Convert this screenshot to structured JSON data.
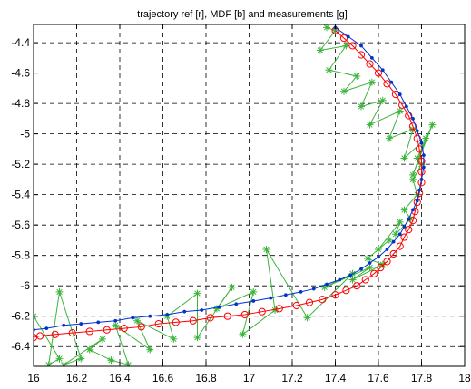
{
  "chart_data": {
    "type": "line",
    "title": "trajectory ref [r], MDF [b] and measurements [g]",
    "xlabel": "",
    "ylabel": "",
    "xlim": [
      16,
      18
    ],
    "ylim": [
      -6.53,
      -4.28
    ],
    "xticks": [
      "16",
      "16.2",
      "16.4",
      "16.6",
      "16.8",
      "17",
      "17.2",
      "17.4",
      "17.6",
      "17.8",
      "18"
    ],
    "yticks": [
      "-4.4",
      "-4.6",
      "-4.8",
      "-5",
      "-5.2",
      "-5.4",
      "-5.6",
      "-5.8",
      "-6",
      "-6.2",
      "-6.4"
    ],
    "grid": true,
    "series": [
      {
        "color": "#ff0000",
        "marker": "circle",
        "x": [
          17.4,
          17.44,
          17.48,
          17.52,
          17.56,
          17.6,
          17.64,
          17.68,
          17.71,
          17.74,
          17.76,
          17.78,
          17.79,
          17.8,
          17.8,
          17.8,
          17.79,
          17.78,
          17.77,
          17.76,
          17.74,
          17.72,
          17.7,
          17.67,
          17.64,
          17.61,
          17.58,
          17.54,
          17.5,
          17.45,
          17.4,
          17.34,
          17.28,
          17.22,
          17.14,
          17.06,
          16.98,
          16.9,
          16.82,
          16.74,
          16.66,
          16.58,
          16.5,
          16.42,
          16.34,
          16.26,
          16.18,
          16.1,
          16.03,
          16.0
        ],
        "y": [
          -4.32,
          -4.37,
          -4.42,
          -4.48,
          -4.54,
          -4.6,
          -4.67,
          -4.74,
          -4.81,
          -4.88,
          -4.95,
          -5.03,
          -5.1,
          -5.18,
          -5.25,
          -5.32,
          -5.39,
          -5.45,
          -5.51,
          -5.57,
          -5.63,
          -5.68,
          -5.74,
          -5.79,
          -5.84,
          -5.88,
          -5.92,
          -5.96,
          -6.0,
          -6.03,
          -6.06,
          -6.09,
          -6.11,
          -6.13,
          -6.15,
          -6.17,
          -6.19,
          -6.2,
          -6.21,
          -6.23,
          -6.24,
          -6.25,
          -6.27,
          -6.28,
          -6.29,
          -6.3,
          -6.31,
          -6.32,
          -6.33,
          -6.34
        ]
      },
      {
        "color": "#0033cc",
        "marker": "dot",
        "x": [
          17.4,
          17.46,
          17.52,
          17.57,
          17.62,
          17.66,
          17.7,
          17.73,
          17.76,
          17.78,
          17.8,
          17.81,
          17.81,
          17.8,
          17.79,
          17.78,
          17.76,
          17.74,
          17.72,
          17.7,
          17.67,
          17.64,
          17.6,
          17.56,
          17.52,
          17.47,
          17.42,
          17.36,
          17.3,
          17.24,
          17.17,
          17.1,
          17.02,
          16.94,
          16.86,
          16.78,
          16.7,
          16.62,
          16.54,
          16.46,
          16.38,
          16.3,
          16.22,
          16.14,
          16.06,
          16.0
        ],
        "y": [
          -4.3,
          -4.36,
          -4.42,
          -4.5,
          -4.58,
          -4.66,
          -4.74,
          -4.82,
          -4.9,
          -4.98,
          -5.06,
          -5.14,
          -5.22,
          -5.3,
          -5.37,
          -5.44,
          -5.5,
          -5.56,
          -5.61,
          -5.66,
          -5.71,
          -5.76,
          -5.81,
          -5.85,
          -5.89,
          -5.93,
          -5.96,
          -5.99,
          -6.02,
          -6.04,
          -6.06,
          -6.08,
          -6.1,
          -6.12,
          -6.14,
          -6.16,
          -6.17,
          -6.19,
          -6.2,
          -6.21,
          -6.23,
          -6.24,
          -6.25,
          -6.26,
          -6.28,
          -6.29
        ]
      },
      {
        "color": "#3cb43c",
        "marker": "star",
        "x": [
          17.36,
          17.4,
          17.33,
          17.45,
          17.37,
          17.5,
          17.44,
          17.57,
          17.52,
          17.62,
          17.56,
          17.7,
          17.65,
          17.76,
          17.72,
          17.82,
          17.76,
          17.85,
          17.78,
          17.8,
          17.76,
          17.78,
          17.72,
          17.75,
          17.68,
          17.7,
          17.6,
          17.65,
          17.55,
          17.62,
          17.48,
          17.56,
          17.35,
          17.48,
          17.27,
          17.08,
          17.12,
          16.97,
          17.02,
          16.85,
          16.92,
          16.76,
          16.76,
          16.62,
          16.65,
          16.48,
          16.54,
          16.38,
          16.44,
          16.36,
          16.26,
          16.32,
          16.14,
          16.22,
          16.12,
          16.07,
          16.12,
          16.0
        ],
        "y": [
          -4.3,
          -4.32,
          -4.45,
          -4.42,
          -4.58,
          -4.62,
          -4.72,
          -4.66,
          -4.82,
          -4.78,
          -4.94,
          -4.85,
          -5.03,
          -4.97,
          -5.16,
          -5.03,
          -5.27,
          -4.94,
          -5.16,
          -5.2,
          -5.3,
          -5.4,
          -5.5,
          -5.56,
          -5.66,
          -5.58,
          -5.76,
          -5.7,
          -5.82,
          -5.86,
          -5.96,
          -5.88,
          -6.01,
          -5.92,
          -6.21,
          -5.76,
          -6.16,
          -6.32,
          -6.04,
          -6.15,
          -6.01,
          -6.34,
          -6.05,
          -6.2,
          -6.35,
          -6.23,
          -6.42,
          -6.26,
          -6.52,
          -6.49,
          -6.42,
          -6.35,
          -6.52,
          -6.48,
          -6.04,
          -6.52,
          -6.48,
          -6.2
        ]
      }
    ]
  }
}
